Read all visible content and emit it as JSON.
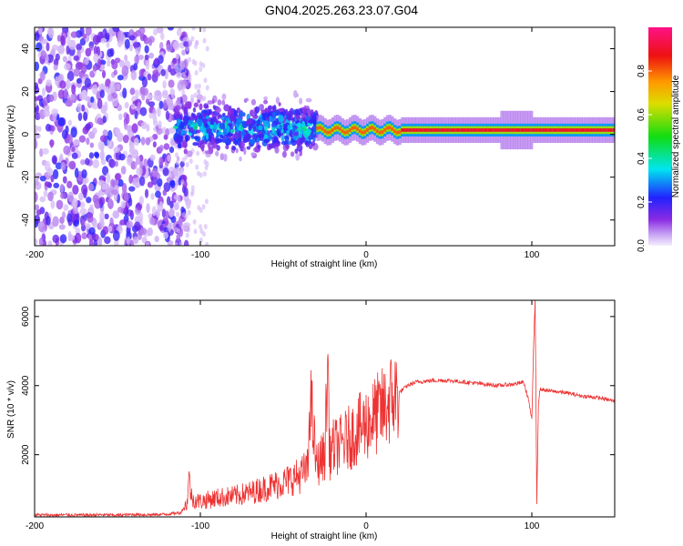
{
  "title": "GN04.2025.263.23.07.G04",
  "chart_data": [
    {
      "type": "heatmap",
      "xlabel": "Height of straight line (km)",
      "ylabel": "Frequency (Hz)",
      "xlim": [
        -200,
        150
      ],
      "ylim": [
        -52,
        50
      ],
      "xticks": [
        "-200",
        "-100",
        "0",
        "100"
      ],
      "xtick_values": [
        -200,
        -100,
        0,
        100
      ],
      "yticks": [
        "-40",
        "-20",
        "0",
        "20",
        "40"
      ],
      "ytick_values": [
        -40,
        -20,
        0,
        20,
        40
      ],
      "colorbar": {
        "label": "Normalized spectral amplitude",
        "ticks": [
          "0.0",
          "0.2",
          "0.4",
          "0.6",
          "0.8"
        ],
        "tick_values": [
          0,
          0.2,
          0.4,
          0.6,
          0.8
        ],
        "range": [
          0,
          1
        ]
      },
      "regions": [
        {
          "x": [
            -200,
            -115
          ],
          "center_hz": 0,
          "spread_hz": 50,
          "amplitude": 0.1
        },
        {
          "x": [
            -115,
            -30
          ],
          "center_hz": 3,
          "spread_hz": 8,
          "amplitude": 0.35
        },
        {
          "x": [
            -30,
            150
          ],
          "center_hz": 2,
          "spread_hz": 2,
          "amplitude": 0.9
        }
      ]
    },
    {
      "type": "line",
      "xlabel": "Height of straight line (km)",
      "ylabel": "SNR (10 * v/v)",
      "xlim": [
        -200,
        150
      ],
      "ylim": [
        200,
        6470
      ],
      "xticks": [
        "-200",
        "-100",
        "0",
        "100"
      ],
      "xtick_values": [
        -200,
        -100,
        0,
        100
      ],
      "yticks": [
        "2000",
        "4000",
        "6000"
      ],
      "ytick_values": [
        2000,
        4000,
        6000
      ],
      "series": [
        {
          "name": "SNR",
          "color": "#ee3333",
          "x": [
            -200,
            -190,
            -180,
            -170,
            -160,
            -150,
            -140,
            -130,
            -120,
            -112,
            -108,
            -107,
            -105,
            -100,
            -90,
            -80,
            -70,
            -60,
            -50,
            -40,
            -35,
            -34,
            -30,
            -25,
            -23,
            -22,
            -20,
            -15,
            -10,
            -5,
            0,
            5,
            10,
            15,
            20,
            25,
            30,
            40,
            50,
            60,
            70,
            80,
            90,
            95,
            98,
            100,
            101,
            102,
            103,
            104,
            105,
            110,
            120,
            130,
            140,
            150
          ],
          "y": [
            260,
            250,
            260,
            250,
            260,
            250,
            270,
            260,
            280,
            320,
            600,
            1350,
            700,
            650,
            750,
            800,
            900,
            1050,
            1200,
            1400,
            1600,
            3800,
            1700,
            2000,
            4700,
            2000,
            2200,
            2300,
            2500,
            2700,
            2900,
            3100,
            3300,
            3600,
            3800,
            4000,
            4100,
            4150,
            4150,
            4100,
            4050,
            4000,
            4050,
            4100,
            3600,
            3000,
            5000,
            6500,
            600,
            3500,
            3900,
            3850,
            3800,
            3700,
            3650,
            3550
          ]
        }
      ]
    }
  ]
}
